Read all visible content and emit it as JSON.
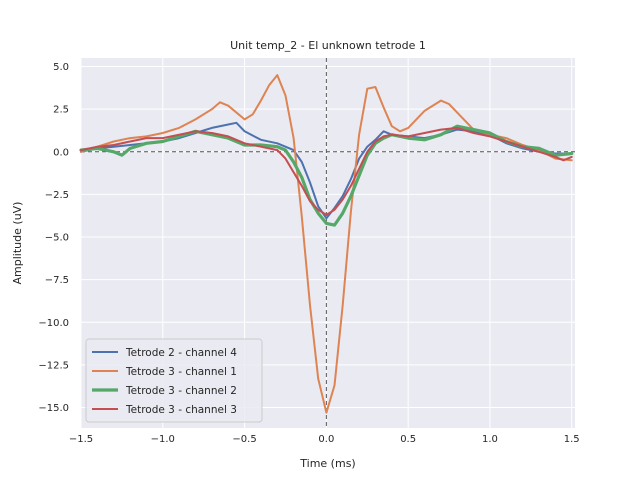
{
  "chart_data": {
    "type": "line",
    "title": "Unit temp_2 - El unknown tetrode 1",
    "xlabel": "Time (ms)",
    "ylabel": "Amplitude (uV)",
    "xlim": [
      -1.5,
      1.52
    ],
    "ylim": [
      -16.2,
      5.5
    ],
    "xticks": [
      -1.5,
      -1.0,
      -0.5,
      0.0,
      0.5,
      1.0,
      1.5
    ],
    "xtick_labels": [
      "−1.5",
      "−1.0",
      "−0.5",
      "0.0",
      "0.5",
      "1.0",
      "1.5"
    ],
    "yticks": [
      5.0,
      2.5,
      0.0,
      -2.5,
      -5.0,
      -7.5,
      -10.0,
      -12.5,
      -15.0
    ],
    "ytick_labels": [
      "5.0",
      "2.5",
      "0.0",
      "−2.5",
      "−5.0",
      "−7.5",
      "−10.0",
      "−12.5",
      "−15.0"
    ],
    "grid": true,
    "legend_position": "lower-left",
    "reference_lines": {
      "x": 0,
      "y": 0
    },
    "series": [
      {
        "name": "Tetrode 2 - channel 4",
        "color": "#4c72b0",
        "x": [
          -1.5,
          -1.4,
          -1.3,
          -1.2,
          -1.1,
          -1.0,
          -0.9,
          -0.8,
          -0.7,
          -0.6,
          -0.55,
          -0.5,
          -0.4,
          -0.3,
          -0.2,
          -0.15,
          -0.1,
          -0.05,
          0.0,
          0.05,
          0.1,
          0.15,
          0.2,
          0.25,
          0.3,
          0.35,
          0.4,
          0.5,
          0.6,
          0.7,
          0.8,
          0.9,
          1.0,
          1.1,
          1.2,
          1.3,
          1.4,
          1.5
        ],
        "y": [
          0.0,
          0.2,
          0.3,
          0.4,
          0.5,
          0.6,
          0.8,
          1.1,
          1.4,
          1.6,
          1.7,
          1.2,
          0.7,
          0.5,
          0.1,
          -0.6,
          -1.8,
          -3.2,
          -3.9,
          -3.3,
          -2.6,
          -1.6,
          -0.4,
          0.3,
          0.7,
          1.2,
          1.0,
          0.9,
          0.8,
          1.0,
          1.3,
          1.2,
          1.0,
          0.5,
          0.2,
          0.0,
          -0.1,
          -0.1
        ]
      },
      {
        "name": "Tetrode 3 - channel 1",
        "color": "#dd8452",
        "x": [
          -1.5,
          -1.4,
          -1.3,
          -1.2,
          -1.1,
          -1.0,
          -0.9,
          -0.8,
          -0.7,
          -0.65,
          -0.6,
          -0.5,
          -0.45,
          -0.4,
          -0.35,
          -0.3,
          -0.25,
          -0.2,
          -0.15,
          -0.1,
          -0.05,
          0.0,
          0.05,
          0.1,
          0.15,
          0.2,
          0.25,
          0.3,
          0.35,
          0.4,
          0.45,
          0.5,
          0.6,
          0.7,
          0.75,
          0.8,
          0.9,
          1.0,
          1.1,
          1.2,
          1.3,
          1.4,
          1.5
        ],
        "y": [
          0.0,
          0.3,
          0.6,
          0.8,
          0.9,
          1.1,
          1.4,
          1.9,
          2.5,
          2.9,
          2.7,
          1.9,
          2.2,
          3.0,
          3.9,
          4.5,
          3.3,
          0.8,
          -3.8,
          -9.0,
          -13.3,
          -15.3,
          -13.7,
          -9.0,
          -3.5,
          1.0,
          3.7,
          3.8,
          2.6,
          1.5,
          1.2,
          1.4,
          2.4,
          3.0,
          2.8,
          2.3,
          1.3,
          1.0,
          0.8,
          0.4,
          0.1,
          -0.4,
          -0.5
        ]
      },
      {
        "name": "Tetrode 3 - channel 2",
        "color": "#55a868",
        "x": [
          -1.5,
          -1.4,
          -1.3,
          -1.25,
          -1.2,
          -1.1,
          -1.0,
          -0.9,
          -0.8,
          -0.7,
          -0.6,
          -0.5,
          -0.4,
          -0.3,
          -0.25,
          -0.2,
          -0.15,
          -0.1,
          -0.05,
          0.0,
          0.05,
          0.1,
          0.15,
          0.2,
          0.25,
          0.3,
          0.35,
          0.4,
          0.5,
          0.6,
          0.7,
          0.8,
          0.9,
          1.0,
          1.1,
          1.2,
          1.3,
          1.4,
          1.5
        ],
        "y": [
          0.1,
          0.2,
          0.0,
          -0.2,
          0.2,
          0.5,
          0.6,
          0.9,
          1.2,
          1.0,
          0.8,
          0.4,
          0.4,
          0.3,
          0.1,
          -0.6,
          -1.5,
          -2.8,
          -3.6,
          -4.2,
          -4.3,
          -3.6,
          -2.6,
          -1.4,
          -0.2,
          0.5,
          0.8,
          1.0,
          0.8,
          0.7,
          1.0,
          1.5,
          1.3,
          1.1,
          0.6,
          0.3,
          0.2,
          -0.2,
          -0.1
        ]
      },
      {
        "name": "Tetrode 3 - channel 3",
        "color": "#c44e52",
        "x": [
          -1.5,
          -1.4,
          -1.3,
          -1.2,
          -1.1,
          -1.0,
          -0.9,
          -0.8,
          -0.7,
          -0.6,
          -0.5,
          -0.4,
          -0.3,
          -0.25,
          -0.2,
          -0.15,
          -0.1,
          -0.05,
          0.0,
          0.05,
          0.1,
          0.15,
          0.2,
          0.25,
          0.3,
          0.35,
          0.4,
          0.5,
          0.6,
          0.7,
          0.8,
          0.9,
          1.0,
          1.1,
          1.2,
          1.3,
          1.4,
          1.45,
          1.5
        ],
        "y": [
          0.1,
          0.3,
          0.4,
          0.6,
          0.8,
          0.8,
          1.0,
          1.2,
          1.1,
          0.9,
          0.5,
          0.3,
          0.1,
          -0.4,
          -1.2,
          -2.0,
          -2.9,
          -3.4,
          -3.7,
          -3.4,
          -2.8,
          -2.0,
          -1.0,
          0.0,
          0.6,
          0.9,
          1.0,
          0.9,
          1.1,
          1.3,
          1.4,
          1.1,
          0.9,
          0.6,
          0.3,
          0.0,
          -0.3,
          -0.5,
          -0.3
        ]
      }
    ]
  }
}
